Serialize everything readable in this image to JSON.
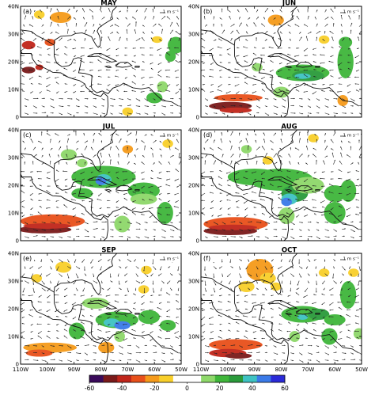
{
  "panels": [
    {
      "id": "a",
      "letter": "(a)",
      "month": "MAY",
      "scale_label": "1 m s⁻¹"
    },
    {
      "id": "b",
      "letter": "(b)",
      "month": "JUN",
      "scale_label": "1 m s⁻¹"
    },
    {
      "id": "c",
      "letter": "(c)",
      "month": "JUL",
      "scale_label": "1 m s⁻¹"
    },
    {
      "id": "d",
      "letter": "(d)",
      "month": "AUG",
      "scale_label": "1 m s⁻¹"
    },
    {
      "id": "e",
      "letter": "(e)",
      "month": "SEP",
      "scale_label": "1 m s⁻¹"
    },
    {
      "id": "f",
      "letter": "(f)",
      "month": "OCT",
      "scale_label": "1 m s⁻¹"
    }
  ],
  "lat_ticks": [
    "0",
    "10N",
    "20N",
    "30N",
    "40N"
  ],
  "lon_ticks": [
    "110W",
    "100W",
    "90W",
    "80W",
    "70W",
    "60W",
    "50W"
  ],
  "colorbar": {
    "ticks": [
      "-60",
      "-40",
      "-20",
      "0",
      "20",
      "40",
      "60"
    ],
    "colors": [
      "#3a0a5a",
      "#7a1a1a",
      "#c0251a",
      "#e8501a",
      "#f59a1a",
      "#f8cf2a",
      "#ffffff",
      "#ffffff",
      "#8ed86a",
      "#3fb63a",
      "#2a9a3a",
      "#3ec2c2",
      "#3a7ae8",
      "#2a2ad8"
    ]
  },
  "colors": {
    "frame": "#000000",
    "coast": "#111111",
    "arrow": "#222222"
  }
}
